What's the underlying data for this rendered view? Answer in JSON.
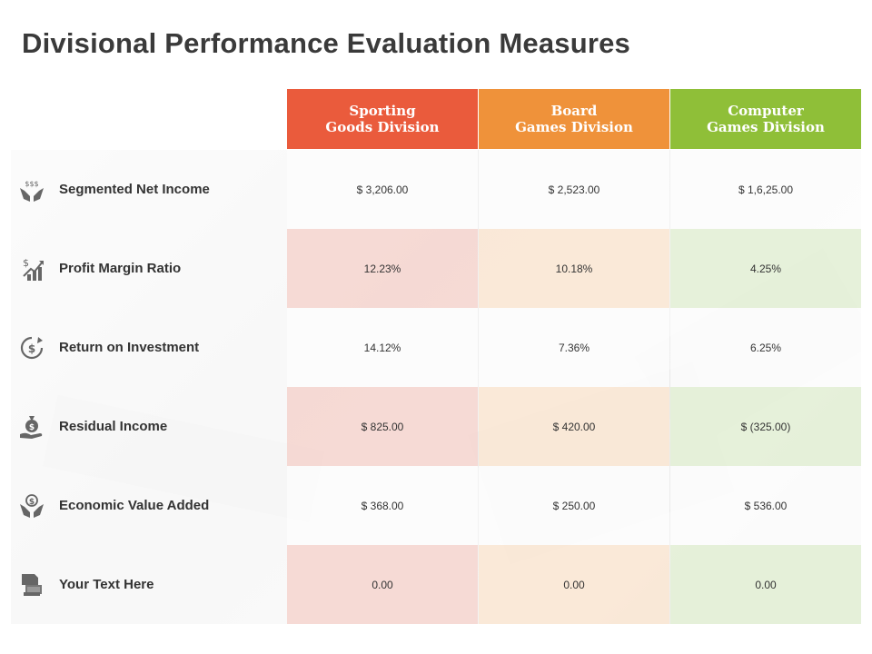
{
  "title": "Divisional Performance Evaluation Measures",
  "columns": [
    {
      "line1": "Sporting",
      "line2": "Goods Division",
      "color": "#ea5b3c"
    },
    {
      "line1": "Board",
      "line2": "Games Division",
      "color": "#ef923a"
    },
    {
      "line1": "Computer",
      "line2": "Games Division",
      "color": "#8fbf38"
    }
  ],
  "rows": [
    {
      "label": "Segmented Net Income",
      "icon": "money-hands-icon",
      "values": [
        "$ 3,206.00",
        "$ 2,523.00",
        "$ 1,6,25.00"
      ]
    },
    {
      "label": "Profit Margin Ratio",
      "icon": "growth-chart-icon",
      "values": [
        "12.23%",
        "10.18%",
        "4.25%"
      ]
    },
    {
      "label": "Return on Investment",
      "icon": "dollar-cycle-icon",
      "values": [
        "14.12%",
        "7.36%",
        "6.25%"
      ]
    },
    {
      "label": "Residual Income",
      "icon": "money-bag-hand-icon",
      "values": [
        "$ 825.00",
        "$ 420.00",
        "$ (325.00)"
      ]
    },
    {
      "label": "Economic Value Added",
      "icon": "dollar-hands-icon",
      "values": [
        "$ 368.00",
        "$ 250.00",
        "$ 536.00"
      ]
    },
    {
      "label": "Your Text Here",
      "icon": "cash-document-icon",
      "values": [
        "0.00",
        "0.00",
        "0.00"
      ]
    }
  ]
}
